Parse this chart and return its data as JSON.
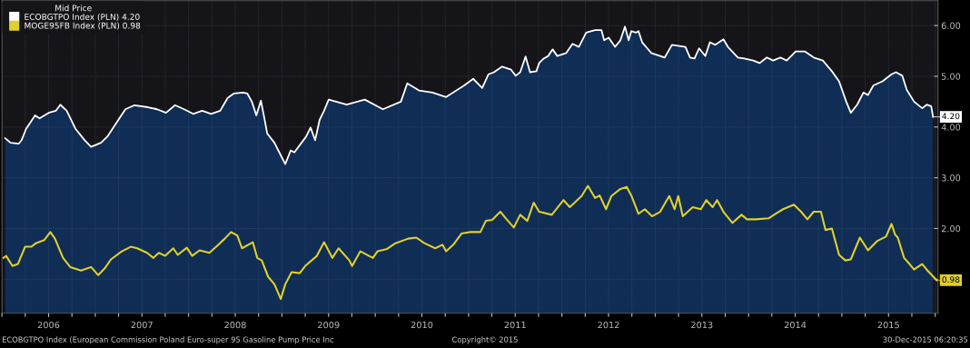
{
  "chart_data": {
    "type": "line",
    "legend_title": "Mid Price",
    "legend": "top left",
    "grid": true,
    "xlim": [
      2006.0,
      2016.03
    ],
    "ylim": [
      0.33,
      6.49
    ],
    "xticks": [
      {
        "value": 2006.0,
        "label": null
      },
      {
        "value": 2006.25,
        "label": null
      },
      {
        "value": 2006.5,
        "label": "2006"
      },
      {
        "value": 2006.75,
        "label": null
      },
      {
        "value": 2007.0,
        "label": null
      },
      {
        "value": 2007.25,
        "label": null
      },
      {
        "value": 2007.5,
        "label": "2007"
      },
      {
        "value": 2007.75,
        "label": null
      },
      {
        "value": 2008.0,
        "label": null
      },
      {
        "value": 2008.25,
        "label": null
      },
      {
        "value": 2008.5,
        "label": "2008"
      },
      {
        "value": 2008.75,
        "label": null
      },
      {
        "value": 2009.0,
        "label": null
      },
      {
        "value": 2009.25,
        "label": null
      },
      {
        "value": 2009.5,
        "label": "2009"
      },
      {
        "value": 2009.75,
        "label": null
      },
      {
        "value": 2010.0,
        "label": null
      },
      {
        "value": 2010.25,
        "label": null
      },
      {
        "value": 2010.5,
        "label": "2010"
      },
      {
        "value": 2010.75,
        "label": null
      },
      {
        "value": 2011.0,
        "label": null
      },
      {
        "value": 2011.25,
        "label": null
      },
      {
        "value": 2011.5,
        "label": "2011"
      },
      {
        "value": 2011.75,
        "label": null
      },
      {
        "value": 2012.0,
        "label": null
      },
      {
        "value": 2012.25,
        "label": null
      },
      {
        "value": 2012.5,
        "label": "2012"
      },
      {
        "value": 2012.75,
        "label": null
      },
      {
        "value": 2013.0,
        "label": null
      },
      {
        "value": 2013.25,
        "label": null
      },
      {
        "value": 2013.5,
        "label": "2013"
      },
      {
        "value": 2013.75,
        "label": null
      },
      {
        "value": 2014.0,
        "label": null
      },
      {
        "value": 2014.25,
        "label": null
      },
      {
        "value": 2014.5,
        "label": "2014"
      },
      {
        "value": 2014.75,
        "label": null
      },
      {
        "value": 2015.0,
        "label": null
      },
      {
        "value": 2015.25,
        "label": null
      },
      {
        "value": 2015.5,
        "label": "2015"
      },
      {
        "value": 2015.75,
        "label": null
      },
      {
        "value": 2016.0,
        "label": null
      }
    ],
    "yticks": [
      {
        "value": 1,
        "label": null
      },
      {
        "value": 2,
        "label": "2.00"
      },
      {
        "value": 3,
        "label": "3.00"
      },
      {
        "value": 4,
        "label": "4.00"
      },
      {
        "value": 5,
        "label": "5.00"
      },
      {
        "value": 6,
        "label": "6.00"
      }
    ],
    "series": [
      {
        "name": "ECOBGTPO Index (PLN) 4.20",
        "type": "area",
        "color": "#ffffff",
        "x": [
          2006.035,
          2006.093,
          2006.18,
          2006.21,
          2006.258,
          2006.355,
          2006.403,
          2006.5,
          2006.577,
          2006.626,
          2006.694,
          2006.79,
          2006.887,
          2006.955,
          2007.061,
          2007.129,
          2007.226,
          2007.323,
          2007.42,
          2007.565,
          2007.662,
          2007.758,
          2007.855,
          2007.952,
          2008.049,
          2008.146,
          2008.242,
          2008.339,
          2008.417,
          2008.484,
          2008.581,
          2008.63,
          2008.678,
          2008.726,
          2008.775,
          2008.804,
          2008.843,
          2008.92,
          2008.997,
          2009.036,
          2009.094,
          2009.133,
          2009.21,
          2009.259,
          2009.307,
          2009.356,
          2009.404,
          2009.452,
          2009.501,
          2009.694,
          2009.888,
          2010.082,
          2010.275,
          2010.343,
          2010.469,
          2010.614,
          2010.759,
          2010.953,
          2011.05,
          2011.146,
          2011.214,
          2011.272,
          2011.359,
          2011.456,
          2011.505,
          2011.553,
          2011.611,
          2011.659,
          2011.727,
          2011.756,
          2011.805,
          2011.853,
          2011.901,
          2011.95,
          2012.047,
          2012.114,
          2012.182,
          2012.26,
          2012.356,
          2012.424,
          2012.453,
          2012.502,
          2012.569,
          2012.627,
          2012.676,
          2012.715,
          2012.744,
          2012.792,
          2012.821,
          2012.86,
          2012.957,
          2013.053,
          2013.102,
          2013.179,
          2013.324,
          2013.373,
          2013.421,
          2013.47,
          2013.537,
          2013.586,
          2013.644,
          2013.731,
          2013.779,
          2013.886,
          2013.954,
          2014.05,
          2014.118,
          2014.196,
          2014.263,
          2014.341,
          2014.409,
          2014.505,
          2014.602,
          2014.699,
          2014.796,
          2014.893,
          2014.97,
          2015.047,
          2015.096,
          2015.164,
          2015.231,
          2015.28,
          2015.338,
          2015.435,
          2015.532,
          2015.58,
          2015.648,
          2015.696,
          2015.774,
          2015.861,
          2015.909,
          2015.957,
          2015.977
        ],
        "values": [
          3.78,
          3.69,
          3.67,
          3.74,
          3.96,
          4.23,
          4.17,
          4.28,
          4.32,
          4.44,
          4.32,
          3.96,
          3.74,
          3.61,
          3.69,
          3.81,
          4.08,
          4.35,
          4.43,
          4.39,
          4.35,
          4.28,
          4.43,
          4.35,
          4.26,
          4.32,
          4.26,
          4.32,
          4.57,
          4.66,
          4.68,
          4.66,
          4.5,
          4.23,
          4.52,
          4.25,
          3.87,
          3.69,
          3.41,
          3.27,
          3.54,
          3.5,
          3.69,
          3.81,
          3.99,
          3.74,
          4.14,
          4.32,
          4.54,
          4.44,
          4.54,
          4.35,
          4.5,
          4.86,
          4.72,
          4.68,
          4.59,
          4.82,
          4.95,
          4.77,
          5.04,
          5.08,
          5.19,
          5.13,
          5.01,
          5.08,
          5.39,
          5.08,
          5.1,
          5.26,
          5.35,
          5.4,
          5.53,
          5.4,
          5.46,
          5.64,
          5.58,
          5.86,
          5.91,
          5.91,
          5.71,
          5.76,
          5.58,
          5.71,
          5.98,
          5.71,
          5.89,
          5.86,
          5.89,
          5.67,
          5.46,
          5.4,
          5.37,
          5.62,
          5.58,
          5.37,
          5.35,
          5.55,
          5.4,
          5.67,
          5.62,
          5.73,
          5.58,
          5.37,
          5.35,
          5.31,
          5.26,
          5.37,
          5.31,
          5.37,
          5.31,
          5.49,
          5.49,
          5.37,
          5.31,
          5.1,
          4.9,
          4.5,
          4.28,
          4.44,
          4.68,
          4.63,
          4.82,
          4.9,
          5.04,
          5.08,
          5.01,
          4.73,
          4.5,
          4.37,
          4.44,
          4.41,
          4.2
        ]
      },
      {
        "name": "MOGE95FB Index (PLN) 0.98",
        "color": "#e0cf2c",
        "x": [
          2006.016,
          2006.045,
          2006.113,
          2006.171,
          2006.248,
          2006.316,
          2006.364,
          2006.452,
          2006.519,
          2006.568,
          2006.655,
          2006.732,
          2006.848,
          2006.955,
          2007.032,
          2007.1,
          2007.168,
          2007.284,
          2007.381,
          2007.449,
          2007.555,
          2007.623,
          2007.681,
          2007.749,
          2007.836,
          2007.884,
          2007.981,
          2008.039,
          2008.117,
          2008.223,
          2008.32,
          2008.388,
          2008.455,
          2008.523,
          2008.572,
          2008.688,
          2008.736,
          2008.784,
          2008.852,
          2008.92,
          2008.988,
          2009.036,
          2009.104,
          2009.191,
          2009.249,
          2009.375,
          2009.452,
          2009.54,
          2009.607,
          2009.723,
          2009.752,
          2009.84,
          2009.975,
          2010.024,
          2010.12,
          2010.217,
          2010.353,
          2010.44,
          2010.527,
          2010.643,
          2010.72,
          2010.759,
          2010.837,
          2010.924,
          2011.02,
          2011.127,
          2011.185,
          2011.253,
          2011.34,
          2011.408,
          2011.485,
          2011.553,
          2011.63,
          2011.698,
          2011.756,
          2011.892,
          2012.018,
          2012.085,
          2012.211,
          2012.279,
          2012.356,
          2012.405,
          2012.473,
          2012.531,
          2012.627,
          2012.695,
          2012.744,
          2012.821,
          2012.889,
          2012.966,
          2013.053,
          2013.15,
          2013.208,
          2013.247,
          2013.295,
          2013.402,
          2013.489,
          2013.547,
          2013.615,
          2013.663,
          2013.731,
          2013.828,
          2013.925,
          2013.983,
          2014.079,
          2014.215,
          2014.273,
          2014.37,
          2014.486,
          2014.563,
          2014.631,
          2014.699,
          2014.776,
          2014.825,
          2014.893,
          2014.97,
          2015.038,
          2015.096,
          2015.193,
          2015.28,
          2015.376,
          2015.473,
          2015.532,
          2015.57,
          2015.599,
          2015.667,
          2015.725,
          2015.774,
          2015.812,
          2015.861,
          2015.909,
          2016.016
        ],
        "values": [
          1.42,
          1.46,
          1.26,
          1.3,
          1.64,
          1.64,
          1.71,
          1.77,
          1.93,
          1.8,
          1.42,
          1.24,
          1.17,
          1.24,
          1.08,
          1.21,
          1.39,
          1.55,
          1.64,
          1.61,
          1.52,
          1.42,
          1.52,
          1.46,
          1.61,
          1.48,
          1.62,
          1.46,
          1.57,
          1.52,
          1.68,
          1.8,
          1.93,
          1.86,
          1.61,
          1.73,
          1.42,
          1.37,
          1.05,
          0.9,
          0.61,
          0.9,
          1.14,
          1.12,
          1.26,
          1.46,
          1.73,
          1.42,
          1.61,
          1.37,
          1.26,
          1.55,
          1.42,
          1.55,
          1.59,
          1.71,
          1.8,
          1.82,
          1.71,
          1.61,
          1.68,
          1.55,
          1.68,
          1.9,
          1.93,
          1.93,
          2.15,
          2.17,
          2.33,
          2.18,
          2.02,
          2.27,
          2.15,
          2.51,
          2.33,
          2.27,
          2.56,
          2.42,
          2.64,
          2.84,
          2.6,
          2.65,
          2.38,
          2.64,
          2.78,
          2.82,
          2.65,
          2.29,
          2.38,
          2.24,
          2.33,
          2.64,
          2.38,
          2.64,
          2.24,
          2.42,
          2.38,
          2.56,
          2.42,
          2.56,
          2.33,
          2.11,
          2.27,
          2.18,
          2.18,
          2.2,
          2.27,
          2.38,
          2.47,
          2.33,
          2.18,
          2.33,
          2.33,
          1.97,
          2.0,
          1.48,
          1.37,
          1.39,
          1.82,
          1.57,
          1.75,
          1.84,
          2.09,
          1.88,
          1.82,
          1.42,
          1.3,
          1.19,
          1.24,
          1.3,
          1.19,
          0.98
        ]
      }
    ],
    "annotations": [
      {
        "text": "4.20",
        "x": 2015.977,
        "y": 4.2
      },
      {
        "text": "0.98",
        "x": 2016.016,
        "y": 0.98
      },
      "ECOBGTPO Index (European Commission Poland Euro-super 95 Gasoline Pump Price Inc",
      "Copyright© 2015",
      "30-Dec-2015 06:20:35"
    ]
  }
}
